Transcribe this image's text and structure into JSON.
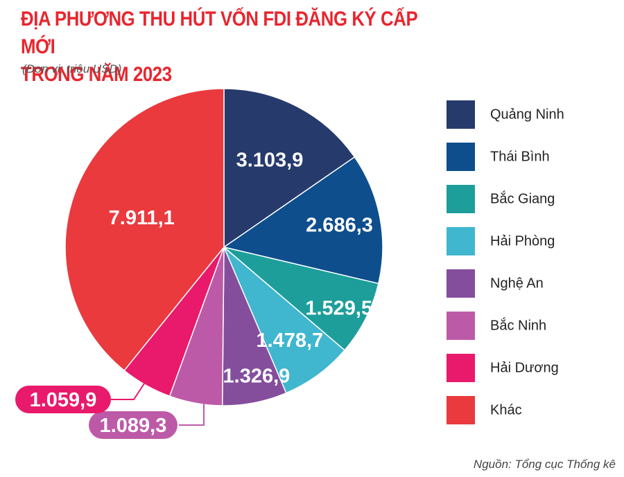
{
  "title_line1": "ĐỊA PHƯƠNG THU HÚT VỐN FDI ĐĂNG KÝ CẤP MỚI",
  "title_line2": "TRONG NĂM 2023",
  "unit": "(Đơn vị: triệu USD)",
  "source": "Nguồn: Tổng cục Thống kê",
  "chart_data": {
    "type": "pie",
    "title": "ĐỊA PHƯƠNG THU HÚT VỐN FDI ĐĂNG KÝ CẤP MỚI TRONG NĂM 2023",
    "unit": "triệu USD",
    "legend_position": "right",
    "slices": [
      {
        "label": "Quảng Ninh",
        "value": 3103.9,
        "display": "3.103,9",
        "color": "#263a6c"
      },
      {
        "label": "Thái Bình",
        "value": 2686.3,
        "display": "2.686,3",
        "color": "#0e4e8d"
      },
      {
        "label": "Bắc Giang",
        "value": 1529.5,
        "display": "1.529,5",
        "color": "#1d9e9b"
      },
      {
        "label": "Hải Phòng",
        "value": 1478.7,
        "display": "1.478,7",
        "color": "#40b6cf"
      },
      {
        "label": "Nghệ An",
        "value": 1326.9,
        "display": "1.326,9",
        "color": "#844e9d"
      },
      {
        "label": "Bắc Ninh",
        "value": 1089.3,
        "display": "1.089,3",
        "color": "#bd5aa8"
      },
      {
        "label": "Hải Dương",
        "value": 1059.9,
        "display": "1.059,9",
        "color": "#e9196b"
      },
      {
        "label": "Khác",
        "value": 7911.1,
        "display": "7.911,1",
        "color": "#ea3a3e"
      }
    ]
  }
}
